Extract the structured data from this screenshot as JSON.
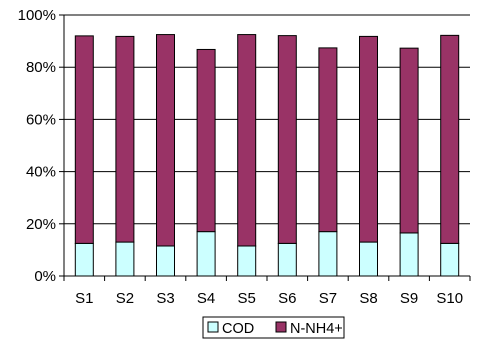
{
  "chart_data": {
    "type": "bar",
    "stacked": true,
    "categories": [
      "S1",
      "S2",
      "S3",
      "S4",
      "S5",
      "S6",
      "S7",
      "S8",
      "S9",
      "S10"
    ],
    "series": [
      {
        "name": "COD",
        "color": "#CCFFFF",
        "values": [
          12.5,
          13.0,
          11.5,
          17.0,
          11.5,
          12.5,
          17.0,
          13.0,
          16.5,
          12.5
        ]
      },
      {
        "name": "N-NH4+",
        "color": "#993366",
        "values": [
          79.5,
          78.8,
          81.0,
          69.8,
          81.0,
          79.6,
          70.4,
          78.8,
          70.8,
          79.7
        ]
      }
    ],
    "ylim": [
      0,
      100
    ],
    "yticks": [
      "0%",
      "20%",
      "40%",
      "60%",
      "80%",
      "100%"
    ],
    "grid": true,
    "legend": "bottom",
    "title": "",
    "xlabel": "",
    "ylabel": ""
  }
}
